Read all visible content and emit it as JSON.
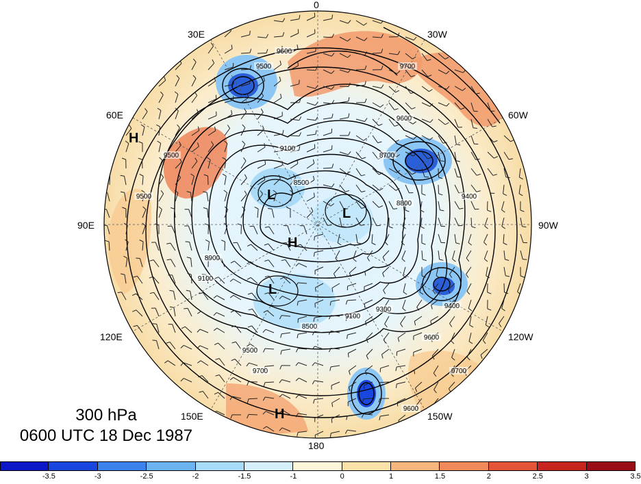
{
  "title": {
    "level": "300 hPa",
    "time": "0600 UTC 18 Dec 1987"
  },
  "longitude_labels": [
    {
      "key": "lon-0",
      "text": "0"
    },
    {
      "key": "lon-30e",
      "text": "30E"
    },
    {
      "key": "lon-30w",
      "text": "30W"
    },
    {
      "key": "lon-60e",
      "text": "60E"
    },
    {
      "key": "lon-60w",
      "text": "60W"
    },
    {
      "key": "lon-90e",
      "text": "90E"
    },
    {
      "key": "lon-90w",
      "text": "90W"
    },
    {
      "key": "lon-120e",
      "text": "120E"
    },
    {
      "key": "lon-120w",
      "text": "120W"
    },
    {
      "key": "lon-150e",
      "text": "150E"
    },
    {
      "key": "lon-150w",
      "text": "150W"
    },
    {
      "key": "lon-180",
      "text": "180"
    }
  ],
  "pressure_systems": [
    {
      "key": "h-60e",
      "text": "H"
    },
    {
      "key": "l-north",
      "text": "L"
    },
    {
      "key": "l-pole",
      "text": "L"
    },
    {
      "key": "h-center",
      "text": "H"
    },
    {
      "key": "l-south",
      "text": "L"
    },
    {
      "key": "h-180",
      "text": "H"
    }
  ],
  "contour_labels": [
    "9600",
    "9500",
    "9600",
    "9700",
    "9500",
    "8900",
    "8700",
    "9100",
    "8800",
    "8500",
    "9100",
    "9400",
    "9600",
    "9700",
    "8500",
    "9300",
    "9100",
    "9500",
    "9600",
    "9700",
    "9400",
    "9500"
  ],
  "colorbar": {
    "colors": [
      "#0c17c8",
      "#1a46e0",
      "#3c82ec",
      "#6cb3f2",
      "#a6dcf8",
      "#d5f0fb",
      "#fdf6d9",
      "#fbe2a8",
      "#f7b77c",
      "#f08a5a",
      "#e45438",
      "#c7241d",
      "#990d16"
    ],
    "tick_labels": [
      "-3.5",
      "-3",
      "-2.5",
      "-2",
      "-1.5",
      "-1",
      "0",
      "1",
      "1.5",
      "2",
      "2.5",
      "3",
      "3.5"
    ]
  }
}
